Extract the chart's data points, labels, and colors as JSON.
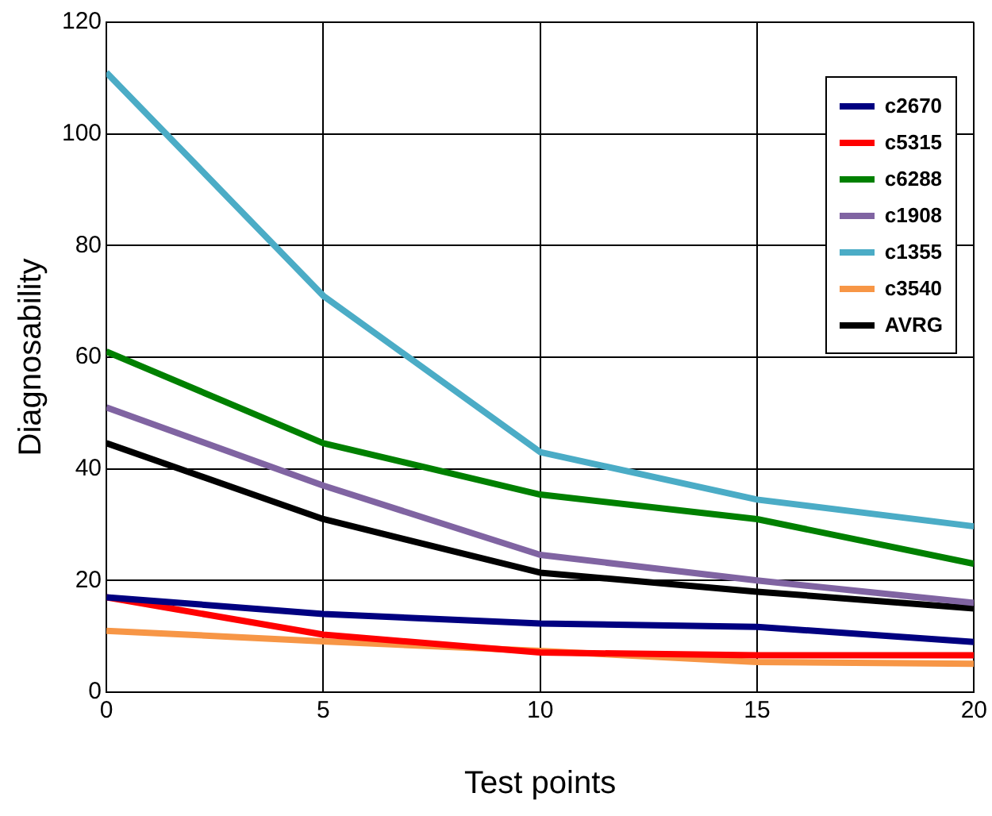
{
  "chart_data": {
    "type": "line",
    "xlabel": "Test points",
    "ylabel": "Diagnosability",
    "x": [
      0,
      5,
      10,
      15,
      20
    ],
    "xlim": [
      0,
      20
    ],
    "xticks": [
      0,
      5,
      10,
      15,
      20
    ],
    "ylim": [
      0,
      120
    ],
    "yticks": [
      0,
      20,
      40,
      60,
      80,
      100,
      120
    ],
    "grid": true,
    "legend": "top right",
    "marker": "none",
    "line_style": "solid",
    "series": [
      {
        "name": "c2670",
        "color": "#000080",
        "values": [
          17,
          14,
          12.3,
          11.7,
          9
        ]
      },
      {
        "name": "c5315",
        "color": "#ff0000",
        "values": [
          17,
          10.3,
          7.1,
          6.6,
          6.6
        ]
      },
      {
        "name": "c6288",
        "color": "#008000",
        "values": [
          61,
          44.6,
          35.4,
          31,
          23
        ]
      },
      {
        "name": "c1908",
        "color": "#8064a2",
        "values": [
          51,
          37,
          24.6,
          20,
          16
        ]
      },
      {
        "name": "c1355",
        "color": "#4bacc6",
        "values": [
          111,
          71,
          43,
          34.5,
          29.7
        ]
      },
      {
        "name": "c3540",
        "color": "#f79646",
        "values": [
          11,
          9.1,
          7.4,
          5.4,
          5.1
        ]
      },
      {
        "name": "AVRG",
        "color": "#000000",
        "values": [
          44.6,
          31,
          21.4,
          18,
          15
        ]
      }
    ]
  }
}
